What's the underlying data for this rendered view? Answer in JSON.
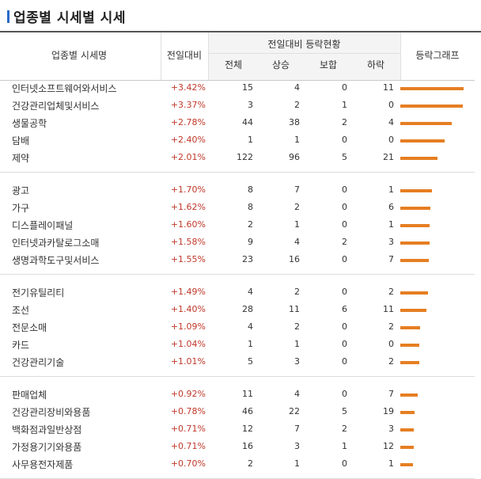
{
  "page": {
    "title": "업종별 시세별 시세"
  },
  "table": {
    "headers": {
      "name": "업종별 시세명",
      "change": "전일대비",
      "status_group": "전일대비 등락현황",
      "total": "전체",
      "up": "상승",
      "flat": "보합",
      "down": "하락",
      "graph": "등락그래프"
    },
    "groups": [
      [
        {
          "name": "인터넷소프트웨어와서비스",
          "change": "+3.42%",
          "total": "15",
          "up": "4",
          "flat": "0",
          "down": "11",
          "level": 3.42
        },
        {
          "name": "건강관리업체및서비스",
          "change": "+3.37%",
          "total": "3",
          "up": "2",
          "flat": "1",
          "down": "0",
          "level": 3.37
        },
        {
          "name": "생물공학",
          "change": "+2.78%",
          "total": "44",
          "up": "38",
          "flat": "2",
          "down": "4",
          "level": 2.78
        },
        {
          "name": "담배",
          "change": "+2.40%",
          "total": "1",
          "up": "1",
          "flat": "0",
          "down": "0",
          "level": 2.4
        },
        {
          "name": "제약",
          "change": "+2.01%",
          "total": "122",
          "up": "96",
          "flat": "5",
          "down": "21",
          "level": 2.01
        }
      ],
      [
        {
          "name": "광고",
          "change": "+1.70%",
          "total": "8",
          "up": "7",
          "flat": "0",
          "down": "1",
          "level": 1.7
        },
        {
          "name": "가구",
          "change": "+1.62%",
          "total": "8",
          "up": "2",
          "flat": "0",
          "down": "6",
          "level": 1.62
        },
        {
          "name": "디스플레이패널",
          "change": "+1.60%",
          "total": "2",
          "up": "1",
          "flat": "0",
          "down": "1",
          "level": 1.6
        },
        {
          "name": "인터넷과카탈로그소매",
          "change": "+1.58%",
          "total": "9",
          "up": "4",
          "flat": "2",
          "down": "3",
          "level": 1.58
        },
        {
          "name": "생명과학도구및서비스",
          "change": "+1.55%",
          "total": "23",
          "up": "16",
          "flat": "0",
          "down": "7",
          "level": 1.55
        }
      ],
      [
        {
          "name": "전기유틸리티",
          "change": "+1.49%",
          "total": "4",
          "up": "2",
          "flat": "0",
          "down": "2",
          "level": 1.49
        },
        {
          "name": "조선",
          "change": "+1.40%",
          "total": "28",
          "up": "11",
          "flat": "6",
          "down": "11",
          "level": 1.4
        },
        {
          "name": "전문소매",
          "change": "+1.09%",
          "total": "4",
          "up": "2",
          "flat": "0",
          "down": "2",
          "level": 1.09
        },
        {
          "name": "카드",
          "change": "+1.04%",
          "total": "1",
          "up": "1",
          "flat": "0",
          "down": "0",
          "level": 1.04
        },
        {
          "name": "건강관리기술",
          "change": "+1.01%",
          "total": "5",
          "up": "3",
          "flat": "0",
          "down": "2",
          "level": 1.01
        }
      ],
      [
        {
          "name": "판매업체",
          "change": "+0.92%",
          "total": "11",
          "up": "4",
          "flat": "0",
          "down": "7",
          "level": 0.92
        },
        {
          "name": "건강관리장비와용품",
          "change": "+0.78%",
          "total": "46",
          "up": "22",
          "flat": "5",
          "down": "19",
          "level": 0.78
        },
        {
          "name": "백화점과일반상점",
          "change": "+0.71%",
          "total": "12",
          "up": "7",
          "flat": "2",
          "down": "3",
          "level": 0.71
        },
        {
          "name": "가정용기기와용품",
          "change": "+0.71%",
          "total": "16",
          "up": "3",
          "flat": "1",
          "down": "12",
          "level": 0.71
        },
        {
          "name": "사무용전자제품",
          "change": "+0.70%",
          "total": "2",
          "up": "1",
          "flat": "0",
          "down": "1",
          "level": 0.7
        }
      ]
    ],
    "bar_color": "#e67e22",
    "change_color": "#c0392b"
  }
}
